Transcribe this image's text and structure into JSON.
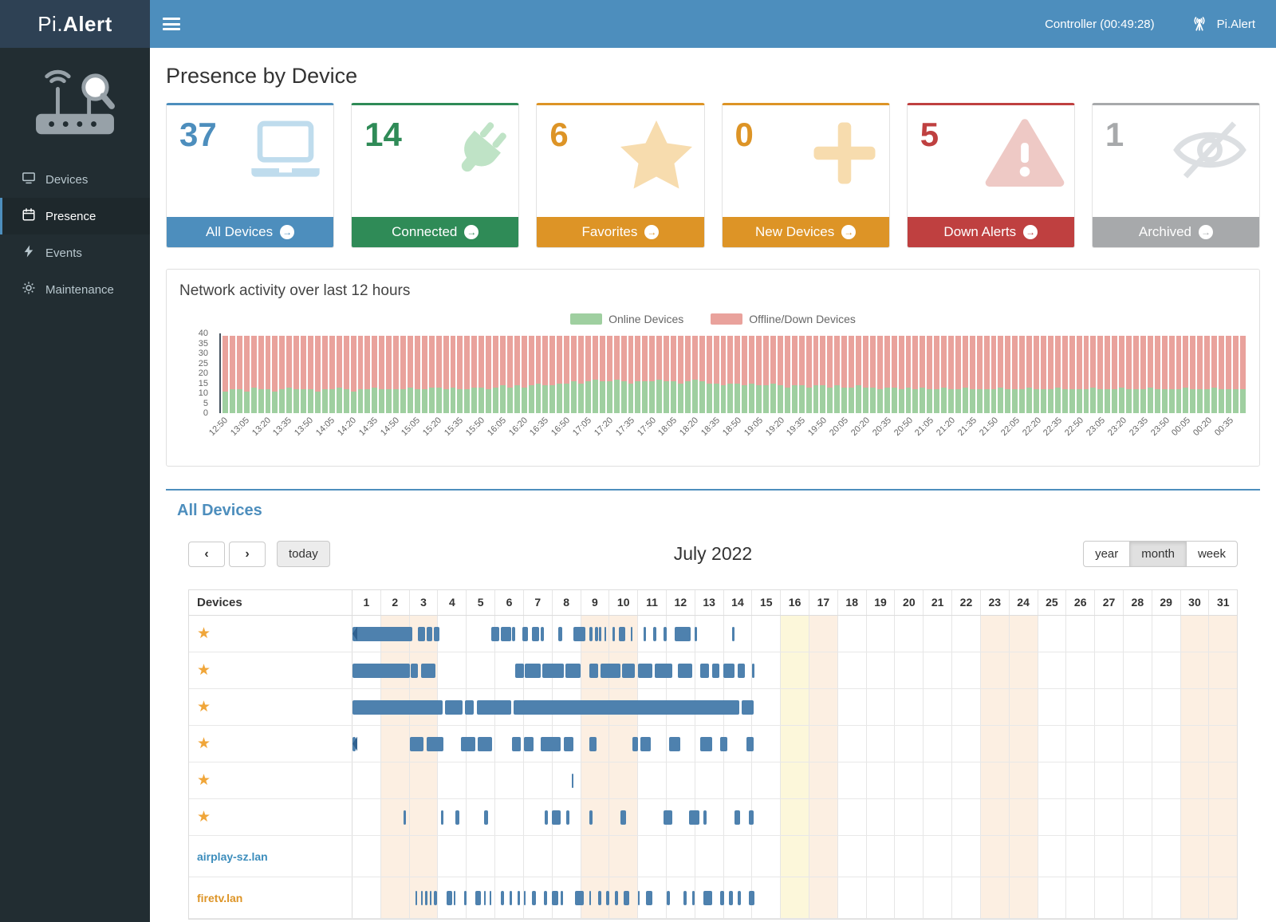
{
  "topbar": {
    "logo_prefix": "Pi.",
    "logo_suffix": "Alert",
    "status": "Controller (00:49:28)",
    "brand": "Pi.Alert"
  },
  "sidebar": {
    "items": [
      {
        "label": "Devices",
        "icon": "monitor-icon",
        "active": false
      },
      {
        "label": "Presence",
        "icon": "calendar-icon",
        "active": true
      },
      {
        "label": "Events",
        "icon": "bolt-icon",
        "active": false
      },
      {
        "label": "Maintenance",
        "icon": "gear-icon",
        "active": false
      }
    ]
  },
  "page": {
    "title": "Presence by Device"
  },
  "stat_cards": [
    {
      "value": "37",
      "label": "All Devices",
      "color": "#4d8ebd",
      "icon": "laptop-icon"
    },
    {
      "value": "14",
      "label": "Connected",
      "color": "#2f8b57",
      "icon": "plug-icon"
    },
    {
      "value": "6",
      "label": "Favorites",
      "color": "#dd9426",
      "icon": "star-icon"
    },
    {
      "value": "0",
      "label": "New Devices",
      "color": "#dd9426",
      "icon": "plus-icon"
    },
    {
      "value": "5",
      "label": "Down Alerts",
      "color": "#bf4040",
      "icon": "warning-icon"
    },
    {
      "value": "1",
      "label": "Archived",
      "color": "#a7a9ab",
      "icon": "eye-slash-icon"
    }
  ],
  "activity_panel": {
    "title": "Network activity over last 12 hours",
    "legend": [
      {
        "label": "Online Devices",
        "color": "#9fcfa0"
      },
      {
        "label": "Offline/Down Devices",
        "color": "#e9a29c"
      }
    ]
  },
  "chart_data": {
    "type": "bar",
    "stacked": true,
    "title": "Network activity over last 12 hours",
    "ylim": [
      0,
      40
    ],
    "y_ticks": [
      0,
      5,
      10,
      15,
      20,
      25,
      30,
      35,
      40
    ],
    "bars_per_tick": 3,
    "x_tick_labels": [
      "12:50",
      "13:05",
      "13:20",
      "13:35",
      "13:50",
      "14:05",
      "14:20",
      "14:35",
      "14:50",
      "15:05",
      "15:20",
      "15:35",
      "15:50",
      "16:05",
      "16:20",
      "16:35",
      "16:50",
      "17:05",
      "17:20",
      "17:35",
      "17:50",
      "18:05",
      "18:20",
      "18:35",
      "18:50",
      "19:05",
      "19:20",
      "19:35",
      "19:50",
      "20:05",
      "20:20",
      "20:35",
      "20:50",
      "21:05",
      "21:20",
      "21:35",
      "21:50",
      "22:05",
      "22:20",
      "22:35",
      "22:50",
      "23:05",
      "23:20",
      "23:35",
      "23:50",
      "00:05",
      "00:20",
      "00:35"
    ],
    "series": [
      {
        "name": "Online Devices",
        "color": "#9fcfa0",
        "values": [
          11,
          12,
          12,
          11,
          13,
          12,
          12,
          11,
          12,
          13,
          12,
          12,
          12,
          11,
          12,
          12,
          13,
          12,
          11,
          12,
          12,
          13,
          12,
          12,
          12,
          12,
          13,
          12,
          12,
          13,
          13,
          12,
          13,
          12,
          12,
          13,
          13,
          12,
          13,
          14,
          13,
          14,
          13,
          14,
          15,
          14,
          14,
          15,
          15,
          16,
          15,
          16,
          17,
          16,
          16,
          17,
          16,
          15,
          16,
          16,
          16,
          17,
          16,
          16,
          15,
          16,
          17,
          16,
          15,
          15,
          14,
          15,
          15,
          14,
          15,
          14,
          14,
          15,
          14,
          13,
          14,
          14,
          13,
          14,
          14,
          13,
          14,
          13,
          13,
          14,
          13,
          13,
          12,
          13,
          13,
          12,
          13,
          12,
          13,
          12,
          12,
          13,
          12,
          12,
          13,
          12,
          12,
          12,
          12,
          13,
          12,
          12,
          12,
          13,
          12,
          12,
          12,
          13,
          12,
          12,
          12,
          12,
          13,
          12,
          12,
          12,
          13,
          12,
          12,
          12,
          13,
          12,
          12,
          12,
          12,
          13,
          12,
          12,
          12,
          13,
          12,
          12,
          12,
          12
        ]
      },
      {
        "name": "Offline/Down Devices",
        "color": "#e9a29c",
        "values": [
          28,
          27,
          27,
          28,
          26,
          27,
          27,
          28,
          27,
          26,
          27,
          27,
          27,
          28,
          27,
          27,
          26,
          27,
          28,
          27,
          27,
          26,
          27,
          27,
          27,
          27,
          26,
          27,
          27,
          26,
          26,
          27,
          26,
          27,
          27,
          26,
          26,
          27,
          26,
          25,
          26,
          25,
          26,
          25,
          24,
          25,
          25,
          24,
          24,
          23,
          24,
          23,
          22,
          23,
          23,
          22,
          23,
          24,
          23,
          23,
          23,
          22,
          23,
          23,
          24,
          23,
          22,
          23,
          24,
          24,
          25,
          24,
          24,
          25,
          24,
          25,
          25,
          24,
          25,
          26,
          25,
          25,
          26,
          25,
          25,
          26,
          25,
          26,
          26,
          25,
          26,
          26,
          27,
          26,
          26,
          27,
          26,
          27,
          26,
          27,
          27,
          26,
          27,
          27,
          26,
          27,
          27,
          27,
          27,
          26,
          27,
          27,
          27,
          26,
          27,
          27,
          27,
          26,
          27,
          27,
          27,
          27,
          26,
          27,
          27,
          27,
          26,
          27,
          27,
          27,
          26,
          27,
          27,
          27,
          27,
          26,
          27,
          27,
          27,
          26,
          27,
          27,
          27,
          27
        ]
      }
    ]
  },
  "calendar": {
    "section_title": "All Devices",
    "nav": {
      "prev": "‹",
      "next": "›",
      "today": "today"
    },
    "title": "July 2022",
    "views": [
      {
        "label": "year",
        "active": false
      },
      {
        "label": "month",
        "active": true
      },
      {
        "label": "week",
        "active": false
      }
    ],
    "devices_header": "Devices",
    "days_in_month": 31,
    "weekend_days": [
      2,
      3,
      9,
      10,
      16,
      17,
      23,
      24,
      30,
      31
    ],
    "today_day": 16,
    "event_color": "#4e81ae",
    "rows": [
      {
        "type": "favorite",
        "name": "",
        "starts_before": true,
        "segments": [
          [
            1.0,
            3.1
          ],
          [
            3.3,
            3.55
          ],
          [
            3.6,
            3.8
          ],
          [
            3.85,
            4.05
          ],
          [
            5.85,
            6.15
          ],
          [
            6.2,
            6.55
          ],
          [
            6.6,
            6.7
          ],
          [
            6.95,
            7.15
          ],
          [
            7.3,
            7.55
          ],
          [
            7.6,
            7.7
          ],
          [
            8.2,
            8.35
          ],
          [
            8.75,
            9.15
          ],
          [
            9.3,
            9.42
          ],
          [
            9.5,
            9.6
          ],
          [
            9.65,
            9.72
          ],
          [
            9.82,
            9.9
          ],
          [
            10.1,
            10.2
          ],
          [
            10.35,
            10.55
          ],
          [
            10.75,
            10.82
          ],
          [
            11.2,
            11.3
          ],
          [
            11.55,
            11.65
          ],
          [
            11.9,
            12.0
          ],
          [
            12.3,
            12.85
          ],
          [
            13.0,
            13.08
          ],
          [
            14.3,
            14.4
          ]
        ]
      },
      {
        "type": "favorite",
        "name": "",
        "starts_before": false,
        "segments": [
          [
            1.0,
            3.0
          ],
          [
            3.05,
            3.3
          ],
          [
            3.4,
            3.9
          ],
          [
            6.7,
            7.0
          ],
          [
            7.05,
            7.6
          ],
          [
            7.65,
            8.4
          ],
          [
            8.45,
            9.0
          ],
          [
            9.3,
            9.6
          ],
          [
            9.7,
            10.4
          ],
          [
            10.45,
            10.9
          ],
          [
            11.0,
            11.5
          ],
          [
            11.6,
            12.2
          ],
          [
            12.4,
            12.9
          ],
          [
            13.2,
            13.5
          ],
          [
            13.6,
            13.85
          ],
          [
            14.0,
            14.4
          ],
          [
            14.5,
            14.75
          ],
          [
            15.0,
            15.1
          ]
        ]
      },
      {
        "type": "favorite",
        "name": "",
        "starts_before": false,
        "segments": [
          [
            1.0,
            4.15
          ],
          [
            4.25,
            4.85
          ],
          [
            4.95,
            5.25
          ],
          [
            5.35,
            6.55
          ],
          [
            6.65,
            14.55
          ],
          [
            14.65,
            15.05
          ]
        ]
      },
      {
        "type": "favorite",
        "name": "",
        "starts_before": true,
        "segments": [
          [
            1.0,
            1.1
          ],
          [
            3.0,
            3.5
          ],
          [
            3.6,
            4.2
          ],
          [
            4.8,
            5.3
          ],
          [
            5.4,
            5.9
          ],
          [
            6.6,
            6.9
          ],
          [
            7.0,
            7.35
          ],
          [
            7.6,
            8.3
          ],
          [
            8.4,
            8.75
          ],
          [
            9.3,
            9.55
          ],
          [
            10.8,
            11.0
          ],
          [
            11.1,
            11.45
          ],
          [
            12.1,
            12.5
          ],
          [
            13.2,
            13.6
          ],
          [
            13.9,
            14.15
          ],
          [
            14.8,
            15.05
          ]
        ]
      },
      {
        "type": "favorite",
        "name": "",
        "starts_before": false,
        "segments": [
          [
            8.68,
            8.74
          ]
        ]
      },
      {
        "type": "favorite",
        "name": "",
        "starts_before": false,
        "segments": [
          [
            2.8,
            2.87
          ],
          [
            4.1,
            4.2
          ],
          [
            4.6,
            4.75
          ],
          [
            5.6,
            5.75
          ],
          [
            7.75,
            7.85
          ],
          [
            8.0,
            8.3
          ],
          [
            8.5,
            8.6
          ],
          [
            9.3,
            9.42
          ],
          [
            10.4,
            10.6
          ],
          [
            11.9,
            12.2
          ],
          [
            12.8,
            13.15
          ],
          [
            13.3,
            13.42
          ],
          [
            14.4,
            14.58
          ],
          [
            14.9,
            15.07
          ]
        ]
      },
      {
        "type": "device",
        "name": "airplay-sz.lan",
        "name_color": "#3c8dbc",
        "starts_before": false,
        "segments": []
      },
      {
        "type": "device",
        "name": "firetv.lan",
        "name_color": "#dd9426",
        "starts_before": false,
        "segments": [
          [
            3.2,
            3.27
          ],
          [
            3.4,
            3.47
          ],
          [
            3.55,
            3.62
          ],
          [
            3.7,
            3.78
          ],
          [
            3.85,
            3.97
          ],
          [
            4.3,
            4.5
          ],
          [
            4.55,
            4.62
          ],
          [
            4.9,
            5.0
          ],
          [
            5.3,
            5.5
          ],
          [
            5.6,
            5.67
          ],
          [
            5.8,
            5.87
          ],
          [
            6.2,
            6.32
          ],
          [
            6.5,
            6.6
          ],
          [
            6.8,
            6.87
          ],
          [
            7.0,
            7.07
          ],
          [
            7.3,
            7.42
          ],
          [
            7.7,
            7.82
          ],
          [
            8.0,
            8.2
          ],
          [
            8.3,
            8.37
          ],
          [
            8.8,
            9.1
          ],
          [
            9.3,
            9.37
          ],
          [
            9.6,
            9.72
          ],
          [
            9.9,
            10.0
          ],
          [
            10.2,
            10.32
          ],
          [
            10.5,
            10.7
          ],
          [
            11.0,
            11.07
          ],
          [
            11.3,
            11.5
          ],
          [
            12.0,
            12.12
          ],
          [
            12.6,
            12.72
          ],
          [
            12.9,
            13.0
          ],
          [
            13.3,
            13.6
          ],
          [
            13.9,
            14.02
          ],
          [
            14.2,
            14.32
          ],
          [
            14.5,
            14.62
          ],
          [
            14.9,
            15.1
          ]
        ]
      }
    ]
  }
}
